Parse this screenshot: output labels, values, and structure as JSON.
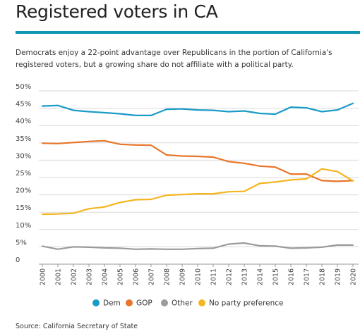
{
  "header": {
    "title": "Registered voters in CA",
    "subtitle": "Democrats enjoy a 22-point advantage over Republicans in the portion of California's registered voters, but a growing share do not affiliate with a political party."
  },
  "footer": {
    "source": "Source: California Secretary of State"
  },
  "chart_data": {
    "type": "line",
    "x": [
      "2000",
      "2001",
      "2002",
      "2003",
      "2004",
      "2005",
      "2006",
      "2007",
      "2008",
      "2009",
      "2010",
      "2011",
      "2012",
      "2013",
      "2014",
      "2015",
      "2016",
      "2017",
      "2018",
      "2019",
      "2020"
    ],
    "y_ticks": [
      "50%",
      "45%",
      "40%",
      "35%",
      "30%",
      "25%",
      "20%",
      "15%",
      "10%",
      "5%",
      "0"
    ],
    "ylim": [
      0,
      50
    ],
    "grid": "horizontal",
    "legend_position": "bottom",
    "series": [
      {
        "name": "Dem",
        "color": "#1a9bc7",
        "values": [
          45.6,
          45.8,
          44.4,
          44.0,
          43.7,
          43.4,
          42.9,
          42.9,
          44.7,
          44.8,
          44.5,
          44.4,
          44.0,
          44.2,
          43.5,
          43.3,
          45.3,
          45.1,
          44.0,
          44.5,
          46.4
        ]
      },
      {
        "name": "GOP",
        "color": "#e8752a",
        "values": [
          34.9,
          34.8,
          35.1,
          35.4,
          35.6,
          34.6,
          34.4,
          34.3,
          31.5,
          31.2,
          31.1,
          30.9,
          29.6,
          29.1,
          28.3,
          28.0,
          26.0,
          26.0,
          24.1,
          23.9,
          24.1
        ]
      },
      {
        "name": "Other",
        "color": "#9b9b9b",
        "values": [
          5.2,
          4.3,
          5.0,
          4.9,
          4.7,
          4.6,
          4.3,
          4.4,
          4.3,
          4.3,
          4.5,
          4.6,
          5.8,
          6.1,
          5.3,
          5.2,
          4.6,
          4.7,
          4.9,
          5.5,
          5.5
        ]
      },
      {
        "name": "No party preference",
        "color": "#f5b521",
        "values": [
          14.4,
          14.5,
          14.7,
          16.0,
          16.5,
          17.8,
          18.6,
          18.7,
          19.9,
          20.1,
          20.3,
          20.3,
          20.9,
          21.0,
          23.3,
          23.7,
          24.3,
          24.6,
          27.5,
          26.7,
          24.0
        ]
      }
    ]
  }
}
